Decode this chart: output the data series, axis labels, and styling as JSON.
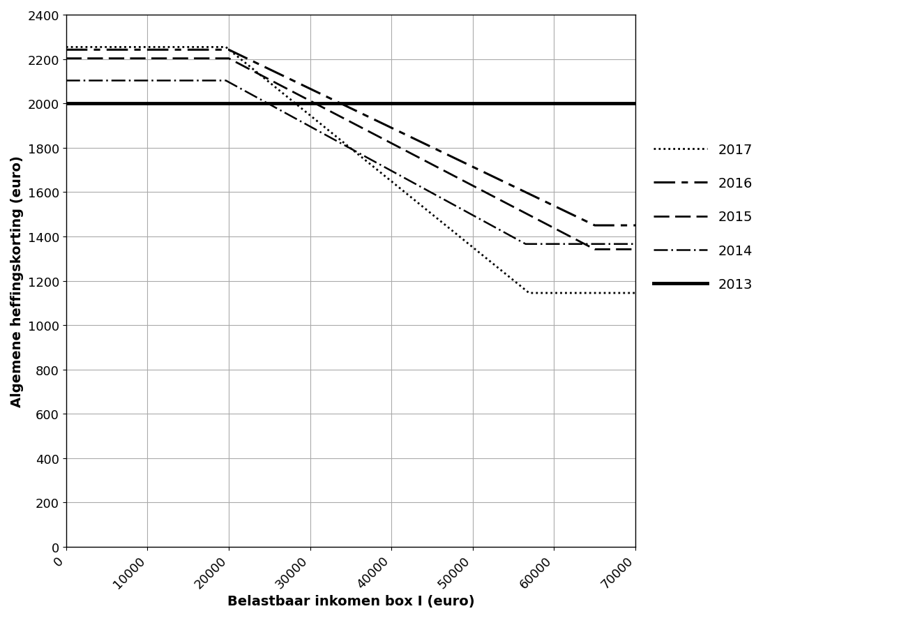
{
  "title": "",
  "xlabel": "Belastbaar inkomen box I (euro)",
  "ylabel": "Algemene heffingskorting (euro)",
  "xlim": [
    0,
    70000
  ],
  "ylim": [
    0,
    2400
  ],
  "xticks": [
    0,
    10000,
    20000,
    30000,
    40000,
    50000,
    60000,
    70000
  ],
  "yticks": [
    0,
    200,
    400,
    600,
    800,
    1000,
    1200,
    1400,
    1600,
    1800,
    2000,
    2200,
    2400
  ],
  "series": [
    {
      "label": "2017",
      "linestyle": "dotted",
      "linewidth": 2.0,
      "color": "#000000",
      "points": [
        [
          0,
          2254
        ],
        [
          19645,
          2254
        ],
        [
          56935,
          1145
        ],
        [
          70000,
          1145
        ]
      ]
    },
    {
      "label": "2016",
      "linestyle": "long_dash",
      "linewidth": 2.2,
      "color": "#000000",
      "points": [
        [
          0,
          2242
        ],
        [
          20000,
          2242
        ],
        [
          65000,
          1450
        ],
        [
          70000,
          1450
        ]
      ]
    },
    {
      "label": "2015",
      "linestyle": "medium_dash",
      "linewidth": 2.0,
      "color": "#000000",
      "points": [
        [
          0,
          2203
        ],
        [
          20000,
          2203
        ],
        [
          65000,
          1342
        ],
        [
          70000,
          1342
        ]
      ]
    },
    {
      "label": "2014",
      "linestyle": "dash_dot",
      "linewidth": 1.8,
      "color": "#000000",
      "points": [
        [
          0,
          2103
        ],
        [
          19645,
          2103
        ],
        [
          56495,
          1366
        ],
        [
          70000,
          1366
        ]
      ]
    },
    {
      "label": "2013",
      "linestyle": "solid",
      "linewidth": 3.5,
      "color": "#000000",
      "points": [
        [
          0,
          2001
        ],
        [
          70000,
          2001
        ]
      ]
    }
  ],
  "background_color": "#ffffff",
  "grid_color": "#aaaaaa",
  "legend_fontsize": 14,
  "axis_fontsize": 14,
  "tick_fontsize": 13
}
